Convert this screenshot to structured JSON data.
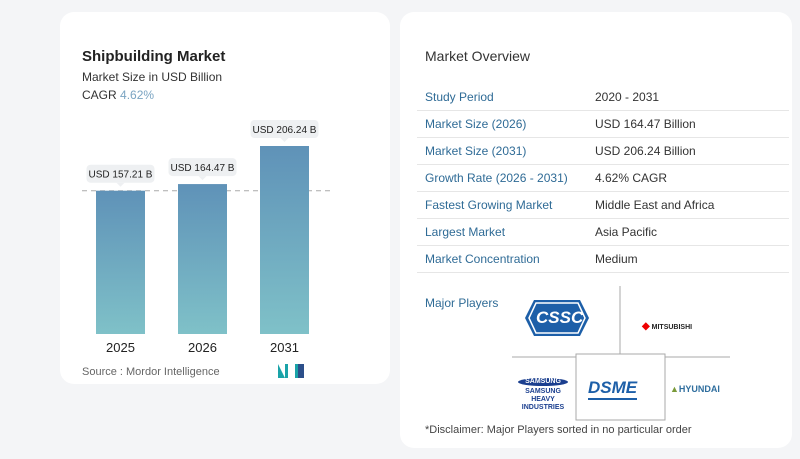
{
  "chart_data": {
    "type": "bar",
    "title": "Shipbuilding Market",
    "subtitle": "Market Size in USD Billion",
    "cagr_label": "CAGR",
    "cagr_value": "4.62%",
    "categories": [
      "2025",
      "2026",
      "2031"
    ],
    "values": [
      157.21,
      164.47,
      206.24
    ],
    "data_labels": [
      "USD 157.21 B",
      "USD 164.47 B",
      "USD 206.24 B"
    ],
    "ylim": [
      0,
      210
    ],
    "bar_color_top": "#5f92b8",
    "bar_color_bottom": "#7fc1c8",
    "reference_line": "dashed at 2025 value",
    "source": "Source :  Mordor Intelligence"
  },
  "overview": {
    "title": "Market Overview",
    "rows": [
      {
        "k": "Study Period",
        "v": "2020 - 2031"
      },
      {
        "k": "Market Size (2026)",
        "v": "USD 164.47 Billion"
      },
      {
        "k": "Market Size (2031)",
        "v": "USD 206.24 Billion"
      },
      {
        "k": "Growth Rate (2026 - 2031)",
        "v": "4.62% CAGR"
      },
      {
        "k": "Fastest Growing Market",
        "v": "Middle East and Africa"
      },
      {
        "k": "Largest Market",
        "v": "Asia Pacific"
      },
      {
        "k": "Market Concentration",
        "v": "Medium"
      }
    ],
    "major_players_label": "Major Players",
    "players": [
      "CSSC",
      "MITSUBISHI",
      "SAMSUNG HEAVY INDUSTRIES",
      "DSME",
      "HYUNDAI"
    ],
    "disclaimer": "*Disclaimer: Major Players sorted in no particular order"
  }
}
